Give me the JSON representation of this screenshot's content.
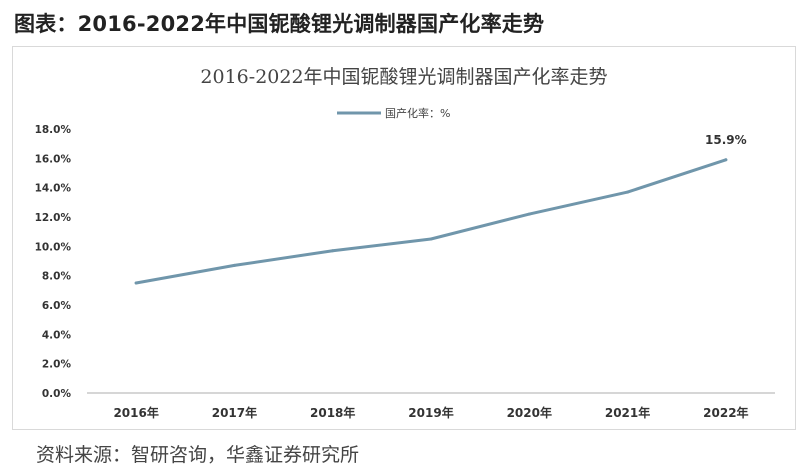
{
  "heading": "图表：2016-2022年中国铌酸锂光调制器国产化率走势",
  "source": "资料来源：智研咨询，华鑫证券研究所",
  "colors": {
    "line": "#7096ab",
    "axis": "#c8c8c8",
    "text": "#333333"
  },
  "chart_data": {
    "type": "line",
    "title": "2016-2022年中国铌酸锂光调制器国产化率走势",
    "xlabel": "",
    "ylabel": "",
    "legend_position": "top-center",
    "grid": false,
    "categories": [
      "2016年",
      "2017年",
      "2018年",
      "2019年",
      "2020年",
      "2021年",
      "2022年"
    ],
    "series": [
      {
        "name": "国产化率：%",
        "values": [
          7.5,
          8.7,
          9.7,
          10.5,
          12.2,
          13.7,
          15.9
        ]
      }
    ],
    "ylim": [
      0,
      18
    ],
    "yticks": [
      "0.0%",
      "2.0%",
      "4.0%",
      "6.0%",
      "8.0%",
      "10.0%",
      "12.0%",
      "14.0%",
      "16.0%",
      "18.0%"
    ],
    "data_labels": [
      {
        "category": "2022年",
        "text": "15.9%"
      }
    ]
  }
}
